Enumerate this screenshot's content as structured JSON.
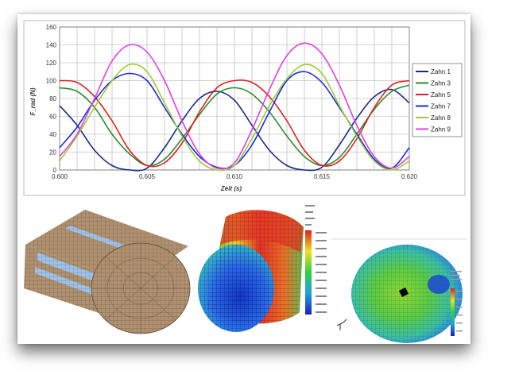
{
  "chart_data": {
    "type": "line",
    "title": "",
    "xlabel": "Zeit (s)",
    "ylabel": "F_rad (N)",
    "xlim": [
      0.6,
      0.62
    ],
    "ylim": [
      0,
      160
    ],
    "xticks": [
      "0.600",
      "0.605",
      "0.610",
      "0.615",
      "0.620"
    ],
    "yticks": [
      "0",
      "20",
      "40",
      "60",
      "80",
      "100",
      "120",
      "140",
      "160"
    ],
    "grid": true,
    "legend_position": "right",
    "series": [
      {
        "name": "Zahn 1",
        "color": "#1a2a8a",
        "x": [
          0.6,
          0.601,
          0.602,
          0.603,
          0.604,
          0.605,
          0.606,
          0.607,
          0.608,
          0.609,
          0.61,
          0.611,
          0.612,
          0.613,
          0.614,
          0.615,
          0.616,
          0.617,
          0.618,
          0.619,
          0.62
        ],
        "y": [
          72,
          50,
          22,
          5,
          0,
          2,
          25,
          55,
          80,
          88,
          78,
          50,
          22,
          5,
          0,
          3,
          28,
          58,
          82,
          90,
          75
        ]
      },
      {
        "name": "Zahn 3",
        "color": "#2e8b2e",
        "x": [
          0.6,
          0.601,
          0.602,
          0.603,
          0.604,
          0.605,
          0.606,
          0.607,
          0.608,
          0.609,
          0.61,
          0.611,
          0.612,
          0.613,
          0.614,
          0.615,
          0.616,
          0.617,
          0.618,
          0.619,
          0.62
        ],
        "y": [
          92,
          88,
          70,
          40,
          18,
          5,
          12,
          35,
          62,
          85,
          92,
          85,
          65,
          38,
          15,
          5,
          14,
          40,
          68,
          88,
          95
        ]
      },
      {
        "name": "Zahn 5",
        "color": "#e02020",
        "x": [
          0.6,
          0.601,
          0.602,
          0.603,
          0.604,
          0.605,
          0.606,
          0.607,
          0.608,
          0.609,
          0.61,
          0.611,
          0.612,
          0.613,
          0.614,
          0.615,
          0.616,
          0.617,
          0.618,
          0.619,
          0.62
        ],
        "y": [
          100,
          98,
          82,
          55,
          22,
          5,
          8,
          30,
          65,
          92,
          100,
          98,
          82,
          55,
          22,
          5,
          10,
          35,
          70,
          95,
          100
        ]
      },
      {
        "name": "Zahn 7",
        "color": "#1a2ae0",
        "x": [
          0.6,
          0.601,
          0.602,
          0.603,
          0.604,
          0.605,
          0.606,
          0.607,
          0.608,
          0.609,
          0.61,
          0.611,
          0.612,
          0.613,
          0.614,
          0.615,
          0.616,
          0.617,
          0.618,
          0.619,
          0.62
        ],
        "y": [
          25,
          48,
          78,
          100,
          108,
          100,
          70,
          40,
          15,
          3,
          5,
          28,
          65,
          100,
          110,
          98,
          70,
          40,
          12,
          2,
          25
        ]
      },
      {
        "name": "Zahn 8",
        "color": "#9acd32",
        "x": [
          0.6,
          0.601,
          0.602,
          0.603,
          0.604,
          0.605,
          0.606,
          0.607,
          0.608,
          0.609,
          0.61,
          0.611,
          0.612,
          0.613,
          0.614,
          0.615,
          0.616,
          0.617,
          0.618,
          0.619,
          0.62
        ],
        "y": [
          10,
          38,
          70,
          100,
          118,
          110,
          75,
          38,
          10,
          0,
          5,
          35,
          72,
          102,
          118,
          108,
          72,
          38,
          10,
          0,
          10
        ]
      },
      {
        "name": "Zahn 9",
        "color": "#e040e0",
        "x": [
          0.6,
          0.601,
          0.602,
          0.603,
          0.604,
          0.605,
          0.606,
          0.607,
          0.608,
          0.609,
          0.61,
          0.611,
          0.612,
          0.613,
          0.614,
          0.615,
          0.616,
          0.617,
          0.618,
          0.619,
          0.62
        ],
        "y": [
          15,
          40,
          80,
          122,
          140,
          132,
          100,
          55,
          18,
          2,
          8,
          45,
          90,
          128,
          142,
          130,
          95,
          50,
          15,
          2,
          15
        ]
      }
    ]
  },
  "sim_labels": {
    "small_panel": "",
    "right_panel": ""
  },
  "colors": {
    "mesh_base": "#a98c6e",
    "mesh_stripe": "#8fb3d9",
    "fem_red": "#e53020",
    "fem_blue": "#1a3ad0",
    "fem_green": "#3cc04a"
  }
}
